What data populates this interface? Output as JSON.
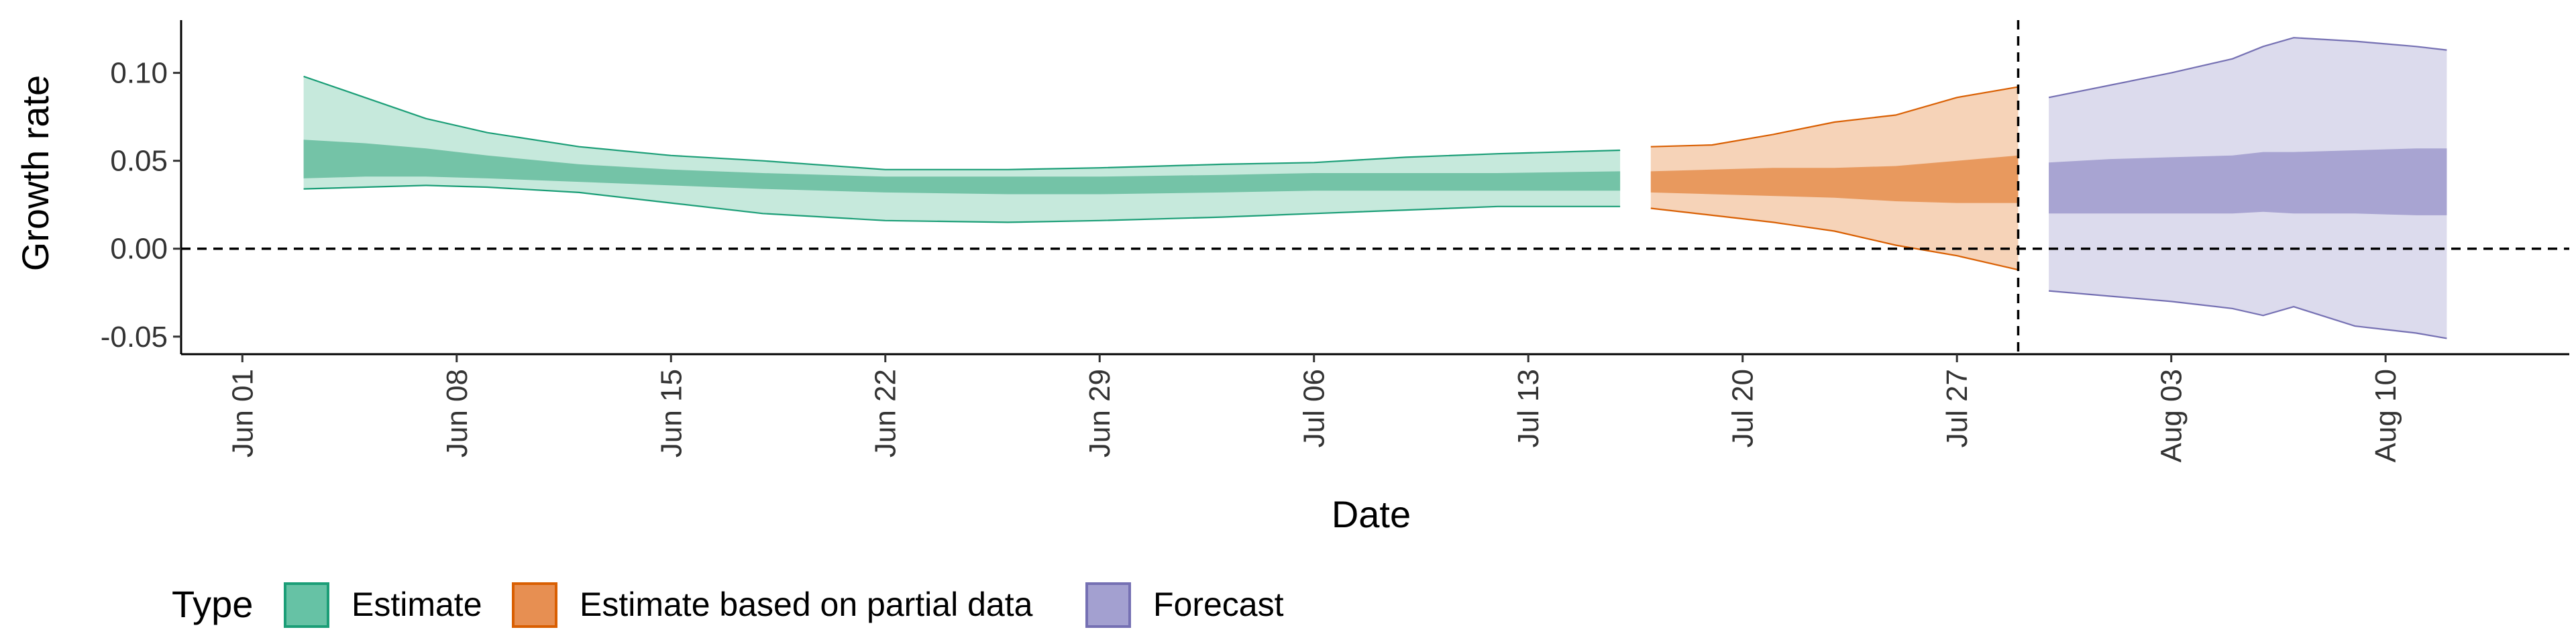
{
  "chart_data": {
    "type": "area",
    "xlabel": "Date",
    "ylabel": "Growth rate",
    "x_range": [
      "2020-05-30",
      "2020-08-16"
    ],
    "ylim": [
      -0.06,
      0.13
    ],
    "y_ticks": [
      {
        "value": 0.1,
        "label": "0.10"
      },
      {
        "value": 0.05,
        "label": "0.05"
      },
      {
        "value": 0.0,
        "label": "0.00"
      },
      {
        "value": -0.05,
        "label": "-0.05"
      }
    ],
    "x_ticks": [
      {
        "date": "2020-06-01",
        "label": "Jun 01"
      },
      {
        "date": "2020-06-08",
        "label": "Jun 08"
      },
      {
        "date": "2020-06-15",
        "label": "Jun 15"
      },
      {
        "date": "2020-06-22",
        "label": "Jun 22"
      },
      {
        "date": "2020-06-29",
        "label": "Jun 29"
      },
      {
        "date": "2020-07-06",
        "label": "Jul 06"
      },
      {
        "date": "2020-07-13",
        "label": "Jul 13"
      },
      {
        "date": "2020-07-20",
        "label": "Jul 20"
      },
      {
        "date": "2020-07-27",
        "label": "Jul 27"
      },
      {
        "date": "2020-08-03",
        "label": "Aug 03"
      },
      {
        "date": "2020-08-10",
        "label": "Aug 10"
      }
    ],
    "hline": {
      "y": 0,
      "style": "dashed"
    },
    "vline": {
      "date": "2020-07-29",
      "style": "dashed"
    },
    "grid": false,
    "legend": {
      "title": "Type",
      "placement": "bottom-left",
      "entries": [
        {
          "label": "Estimate",
          "fill": "#66c2a5",
          "stroke": "#1b9e77"
        },
        {
          "label": "Estimate based on partial data",
          "fill": "#e78f52",
          "stroke": "#d95f02"
        },
        {
          "label": "Forecast",
          "fill": "#a3a0d0",
          "stroke": "#7570b3"
        }
      ]
    },
    "series": [
      {
        "name": "Estimate",
        "outer_fill": "#c6e9dc",
        "inner_fill": "#74c3a7",
        "stroke": "#1b9e77",
        "points": [
          {
            "x": "2020-06-03",
            "lo90": 0.034,
            "lo50": 0.04,
            "hi50": 0.062,
            "hi90": 0.098
          },
          {
            "x": "2020-06-05",
            "lo90": 0.035,
            "lo50": 0.041,
            "hi50": 0.06,
            "hi90": 0.086
          },
          {
            "x": "2020-06-07",
            "lo90": 0.036,
            "lo50": 0.041,
            "hi50": 0.057,
            "hi90": 0.074
          },
          {
            "x": "2020-06-09",
            "lo90": 0.035,
            "lo50": 0.04,
            "hi50": 0.053,
            "hi90": 0.066
          },
          {
            "x": "2020-06-12",
            "lo90": 0.032,
            "lo50": 0.038,
            "hi50": 0.048,
            "hi90": 0.058
          },
          {
            "x": "2020-06-15",
            "lo90": 0.026,
            "lo50": 0.036,
            "hi50": 0.045,
            "hi90": 0.053
          },
          {
            "x": "2020-06-18",
            "lo90": 0.02,
            "lo50": 0.034,
            "hi50": 0.043,
            "hi90": 0.05
          },
          {
            "x": "2020-06-22",
            "lo90": 0.016,
            "lo50": 0.032,
            "hi50": 0.041,
            "hi90": 0.045
          },
          {
            "x": "2020-06-26",
            "lo90": 0.015,
            "lo50": 0.031,
            "hi50": 0.041,
            "hi90": 0.045
          },
          {
            "x": "2020-06-29",
            "lo90": 0.016,
            "lo50": 0.031,
            "hi50": 0.041,
            "hi90": 0.046
          },
          {
            "x": "2020-07-03",
            "lo90": 0.018,
            "lo50": 0.032,
            "hi50": 0.042,
            "hi90": 0.048
          },
          {
            "x": "2020-07-06",
            "lo90": 0.02,
            "lo50": 0.033,
            "hi50": 0.043,
            "hi90": 0.049
          },
          {
            "x": "2020-07-09",
            "lo90": 0.022,
            "lo50": 0.033,
            "hi50": 0.043,
            "hi90": 0.052
          },
          {
            "x": "2020-07-12",
            "lo90": 0.024,
            "lo50": 0.033,
            "hi50": 0.043,
            "hi90": 0.054
          },
          {
            "x": "2020-07-16",
            "lo90": 0.024,
            "lo50": 0.033,
            "hi50": 0.044,
            "hi90": 0.056
          }
        ]
      },
      {
        "name": "Estimate based on partial data",
        "outer_fill": "#f6d3b8",
        "inner_fill": "#e8995e",
        "stroke": "#d95f02",
        "points": [
          {
            "x": "2020-07-17",
            "lo90": 0.023,
            "lo50": 0.032,
            "hi50": 0.044,
            "hi90": 0.058
          },
          {
            "x": "2020-07-19",
            "lo90": 0.019,
            "lo50": 0.031,
            "hi50": 0.045,
            "hi90": 0.059
          },
          {
            "x": "2020-07-21",
            "lo90": 0.015,
            "lo50": 0.03,
            "hi50": 0.046,
            "hi90": 0.065
          },
          {
            "x": "2020-07-23",
            "lo90": 0.01,
            "lo50": 0.029,
            "hi50": 0.046,
            "hi90": 0.072
          },
          {
            "x": "2020-07-25",
            "lo90": 0.002,
            "lo50": 0.027,
            "hi50": 0.047,
            "hi90": 0.076
          },
          {
            "x": "2020-07-27",
            "lo90": -0.004,
            "lo50": 0.026,
            "hi50": 0.05,
            "hi90": 0.086
          },
          {
            "x": "2020-07-29",
            "lo90": -0.012,
            "lo50": 0.026,
            "hi50": 0.053,
            "hi90": 0.092
          }
        ]
      },
      {
        "name": "Forecast",
        "outer_fill": "#dcdbed",
        "inner_fill": "#a8a4d2",
        "stroke": "#7570b3",
        "points": [
          {
            "x": "2020-07-30",
            "lo90": -0.024,
            "lo50": 0.02,
            "hi50": 0.049,
            "hi90": 0.086
          },
          {
            "x": "2020-08-01",
            "lo90": -0.027,
            "lo50": 0.02,
            "hi50": 0.051,
            "hi90": 0.093
          },
          {
            "x": "2020-08-03",
            "lo90": -0.03,
            "lo50": 0.02,
            "hi50": 0.052,
            "hi90": 0.1
          },
          {
            "x": "2020-08-05",
            "lo90": -0.034,
            "lo50": 0.02,
            "hi50": 0.053,
            "hi90": 0.108
          },
          {
            "x": "2020-08-06",
            "lo90": -0.038,
            "lo50": 0.021,
            "hi50": 0.055,
            "hi90": 0.115
          },
          {
            "x": "2020-08-07",
            "lo90": -0.033,
            "lo50": 0.02,
            "hi50": 0.055,
            "hi90": 0.12
          },
          {
            "x": "2020-08-09",
            "lo90": -0.044,
            "lo50": 0.02,
            "hi50": 0.056,
            "hi90": 0.118
          },
          {
            "x": "2020-08-11",
            "lo90": -0.048,
            "lo50": 0.019,
            "hi50": 0.057,
            "hi90": 0.115
          },
          {
            "x": "2020-08-12",
            "lo90": -0.051,
            "lo50": 0.019,
            "hi50": 0.057,
            "hi90": 0.113
          }
        ]
      }
    ]
  }
}
